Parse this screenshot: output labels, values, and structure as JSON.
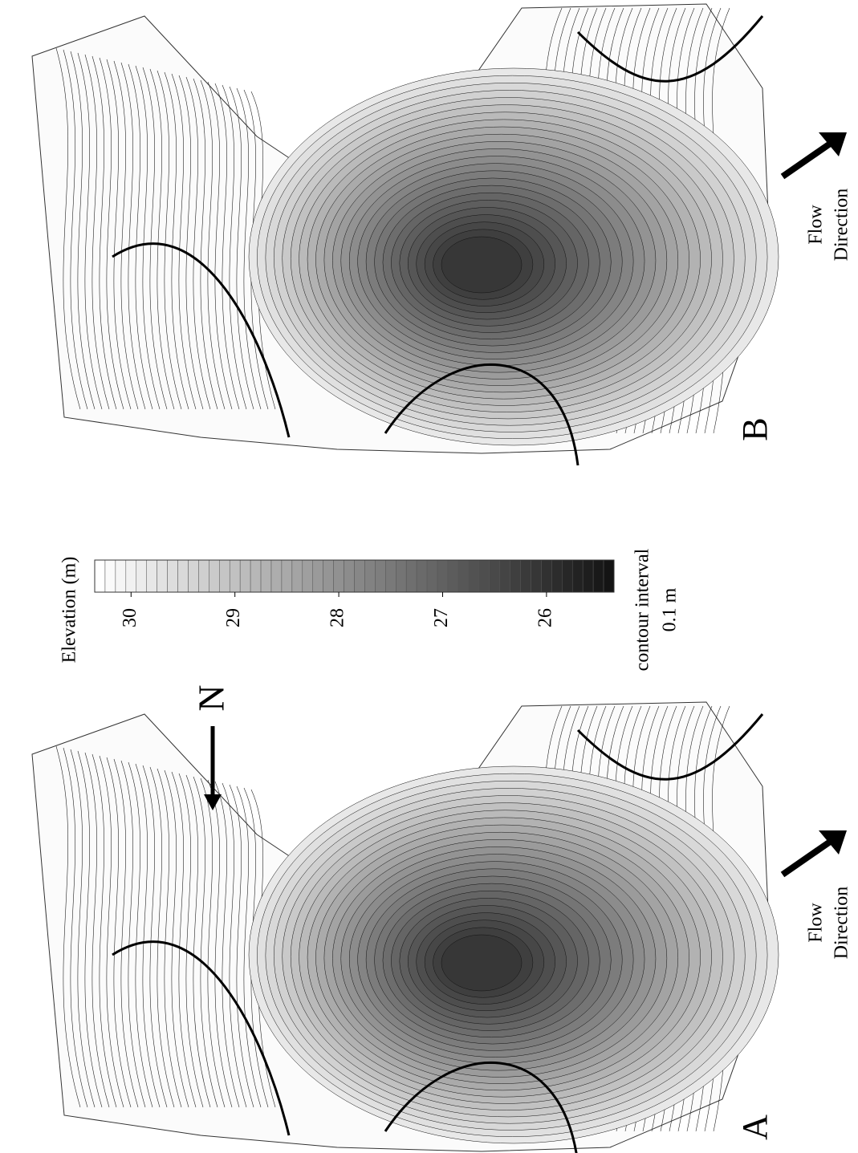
{
  "panels": [
    {
      "label": "A",
      "flow_label": [
        "Flow",
        "Direction"
      ]
    },
    {
      "label": "B",
      "flow_label": [
        "Flow",
        "Direction"
      ]
    }
  ],
  "legend": {
    "title": "Elevation (m)",
    "lim": [
      30.35,
      25.35
    ],
    "ticks": [
      30,
      29,
      28,
      27,
      26
    ],
    "note": [
      "contour interval",
      "0.1 m"
    ]
  },
  "north": "N"
}
